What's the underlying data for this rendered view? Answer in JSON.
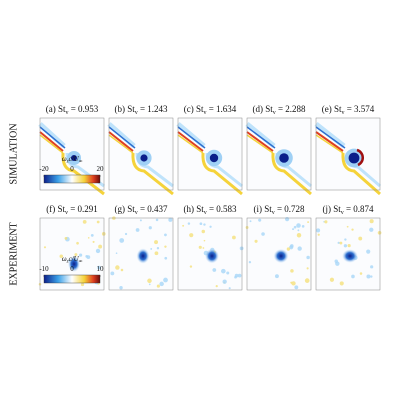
{
  "rows": [
    {
      "label": "SIMULATION",
      "panels": [
        {
          "title": [
            "(a) St",
            "v",
            " = 0.953"
          ]
        },
        {
          "title": [
            "(b) St",
            "v",
            " = 1.243"
          ]
        },
        {
          "title": [
            "(c) St",
            "v",
            " = 1.634"
          ]
        },
        {
          "title": [
            "(d) St",
            "v",
            " = 2.288"
          ]
        },
        {
          "title": [
            "(e) St",
            "v",
            " = 3.574"
          ]
        }
      ],
      "colorbar": {
        "label": [
          "ω",
          "z",
          "c/U",
          "∞"
        ],
        "ticks": [
          -20,
          0,
          20
        ]
      }
    },
    {
      "label": "EXPERIMENT",
      "panels": [
        {
          "title": [
            "(f) St",
            "v",
            " = 0.291"
          ]
        },
        {
          "title": [
            "(g) St",
            "v",
            " = 0.437"
          ]
        },
        {
          "title": [
            "(h) St",
            "v",
            " = 0.583"
          ]
        },
        {
          "title": [
            "(i) St",
            "v",
            " = 0.728"
          ]
        },
        {
          "title": [
            "(j) St",
            "v",
            " = 0.874"
          ]
        }
      ],
      "colorbar": {
        "label": [
          "ω",
          "z",
          "c/U",
          "∞"
        ],
        "ticks": [
          -10,
          0,
          10
        ]
      }
    }
  ]
}
